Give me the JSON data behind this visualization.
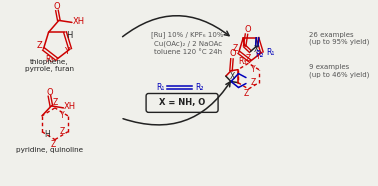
{
  "bg_color": "#f0f0eb",
  "red": "#cc0000",
  "blue": "#0000bb",
  "black": "#222222",
  "gray": "#555555",
  "reagents_line1": "[Ru] 10% / KPF₆ 10%",
  "reagents_line2": "Cu(OAc)₂ / 2 NaOAc",
  "reagents_line3": "toluene 120 °C 24h",
  "label_top_substrate": "thiophene,\npyrrole, furan",
  "label_bottom_substrate": "pyridine, quinoline",
  "label_top_product": "26 examples\n(up to 95% yield)",
  "label_bottom_product": "9 examples\n(up to 46% yield)",
  "x_label": "X = NH, O"
}
